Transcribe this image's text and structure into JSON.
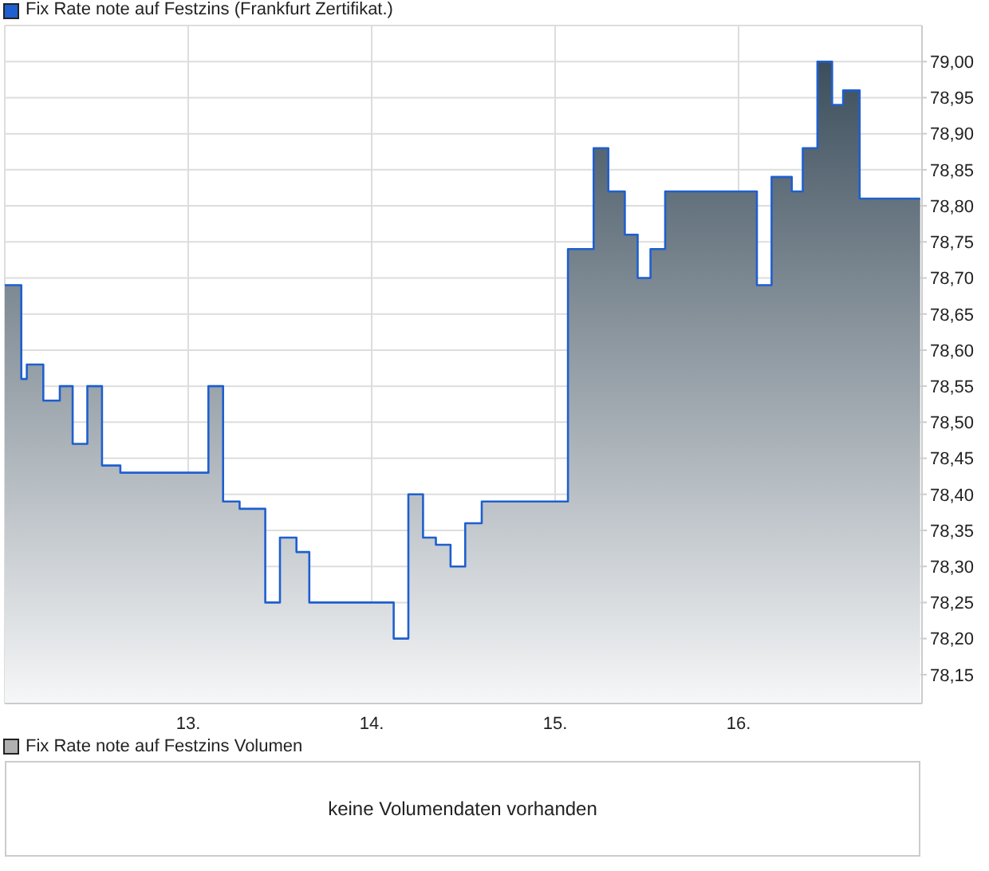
{
  "chart_data": [
    {
      "type": "area",
      "x": [
        12.0,
        12.09,
        12.09,
        12.12,
        12.12,
        12.21,
        12.21,
        12.3,
        12.3,
        12.37,
        12.37,
        12.45,
        12.45,
        12.53,
        12.53,
        12.63,
        12.63,
        13.11,
        13.11,
        13.19,
        13.19,
        13.28,
        13.28,
        13.42,
        13.42,
        13.5,
        13.5,
        13.59,
        13.59,
        13.66,
        13.66,
        14.12,
        14.12,
        14.2,
        14.2,
        14.28,
        14.28,
        14.35,
        14.35,
        14.43,
        14.43,
        14.51,
        14.51,
        14.6,
        14.6,
        15.07,
        15.07,
        15.21,
        15.21,
        15.29,
        15.29,
        15.38,
        15.38,
        15.45,
        15.45,
        15.52,
        15.52,
        15.6,
        15.6,
        16.1,
        16.1,
        16.18,
        16.18,
        16.29,
        16.29,
        16.35,
        16.35,
        16.43,
        16.43,
        16.51,
        16.51,
        16.57,
        16.57,
        16.66,
        16.66,
        16.99
      ],
      "series": [
        {
          "name": "Fix Rate note auf Festzins (Frankfurt Zertifikat.)",
          "color": "#1f5fcf",
          "values": [
            78.69,
            78.69,
            78.56,
            78.56,
            78.58,
            78.58,
            78.53,
            78.53,
            78.55,
            78.55,
            78.47,
            78.47,
            78.55,
            78.55,
            78.44,
            78.44,
            78.43,
            78.43,
            78.55,
            78.55,
            78.39,
            78.39,
            78.38,
            78.38,
            78.25,
            78.25,
            78.34,
            78.34,
            78.32,
            78.32,
            78.25,
            78.25,
            78.2,
            78.2,
            78.4,
            78.4,
            78.34,
            78.34,
            78.33,
            78.33,
            78.3,
            78.3,
            78.36,
            78.36,
            78.39,
            78.39,
            78.74,
            78.74,
            78.88,
            78.88,
            78.82,
            78.82,
            78.76,
            78.76,
            78.7,
            78.7,
            78.74,
            78.74,
            78.82,
            78.82,
            78.69,
            78.69,
            78.84,
            78.84,
            78.82,
            78.82,
            78.88,
            78.88,
            79.0,
            79.0,
            78.94,
            78.94,
            78.96,
            78.96,
            78.81,
            78.81
          ]
        }
      ],
      "xlim": [
        12.0,
        17.0
      ],
      "xticks": [
        {
          "value": 13,
          "label": "13."
        },
        {
          "value": 14,
          "label": "14."
        },
        {
          "value": 15,
          "label": "15."
        },
        {
          "value": 16,
          "label": "16."
        }
      ],
      "ylim": [
        78.11,
        79.05
      ],
      "yticks": [
        {
          "value": 78.15,
          "label": "78,15"
        },
        {
          "value": 78.2,
          "label": "78,20"
        },
        {
          "value": 78.25,
          "label": "78,25"
        },
        {
          "value": 78.3,
          "label": "78,30"
        },
        {
          "value": 78.35,
          "label": "78,35"
        },
        {
          "value": 78.4,
          "label": "78,40"
        },
        {
          "value": 78.45,
          "label": "78,45"
        },
        {
          "value": 78.5,
          "label": "78,50"
        },
        {
          "value": 78.55,
          "label": "78,55"
        },
        {
          "value": 78.6,
          "label": "78,60"
        },
        {
          "value": 78.65,
          "label": "78,65"
        },
        {
          "value": 78.7,
          "label": "78,70"
        },
        {
          "value": 78.75,
          "label": "78,75"
        },
        {
          "value": 78.8,
          "label": "78,80"
        },
        {
          "value": 78.85,
          "label": "78,85"
        },
        {
          "value": 78.9,
          "label": "78,90"
        },
        {
          "value": 78.95,
          "label": "78,95"
        },
        {
          "value": 79.0,
          "label": "79,00"
        }
      ],
      "grid": true,
      "legend": "top left"
    },
    {
      "type": "other",
      "title": "Fix Rate note auf Festzins Volumen",
      "annotations": [
        "keine Volumendaten vorhanden"
      ]
    }
  ]
}
